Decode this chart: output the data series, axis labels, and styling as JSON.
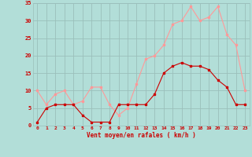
{
  "hours": [
    0,
    1,
    2,
    3,
    4,
    5,
    6,
    7,
    8,
    9,
    10,
    11,
    12,
    13,
    14,
    15,
    16,
    17,
    18,
    19,
    20,
    21,
    22,
    23
  ],
  "wind_avg": [
    1,
    5,
    6,
    6,
    6,
    3,
    1,
    1,
    1,
    6,
    6,
    6,
    6,
    9,
    15,
    17,
    18,
    17,
    17,
    16,
    13,
    11,
    6,
    6
  ],
  "wind_gust": [
    10,
    6,
    9,
    10,
    6,
    7,
    11,
    11,
    6,
    3,
    5,
    12,
    19,
    20,
    23,
    29,
    30,
    34,
    30,
    31,
    34,
    26,
    23,
    10
  ],
  "bg_color": "#b2ded8",
  "grid_color": "#9bbfbb",
  "avg_color": "#cc0000",
  "gust_color": "#ff9999",
  "xlabel": "Vent moyen/en rafales ( km/h )",
  "xlabel_color": "#cc0000",
  "tick_color": "#cc0000",
  "ylim": [
    0,
    35
  ],
  "yticks": [
    0,
    5,
    10,
    15,
    20,
    25,
    30,
    35
  ]
}
